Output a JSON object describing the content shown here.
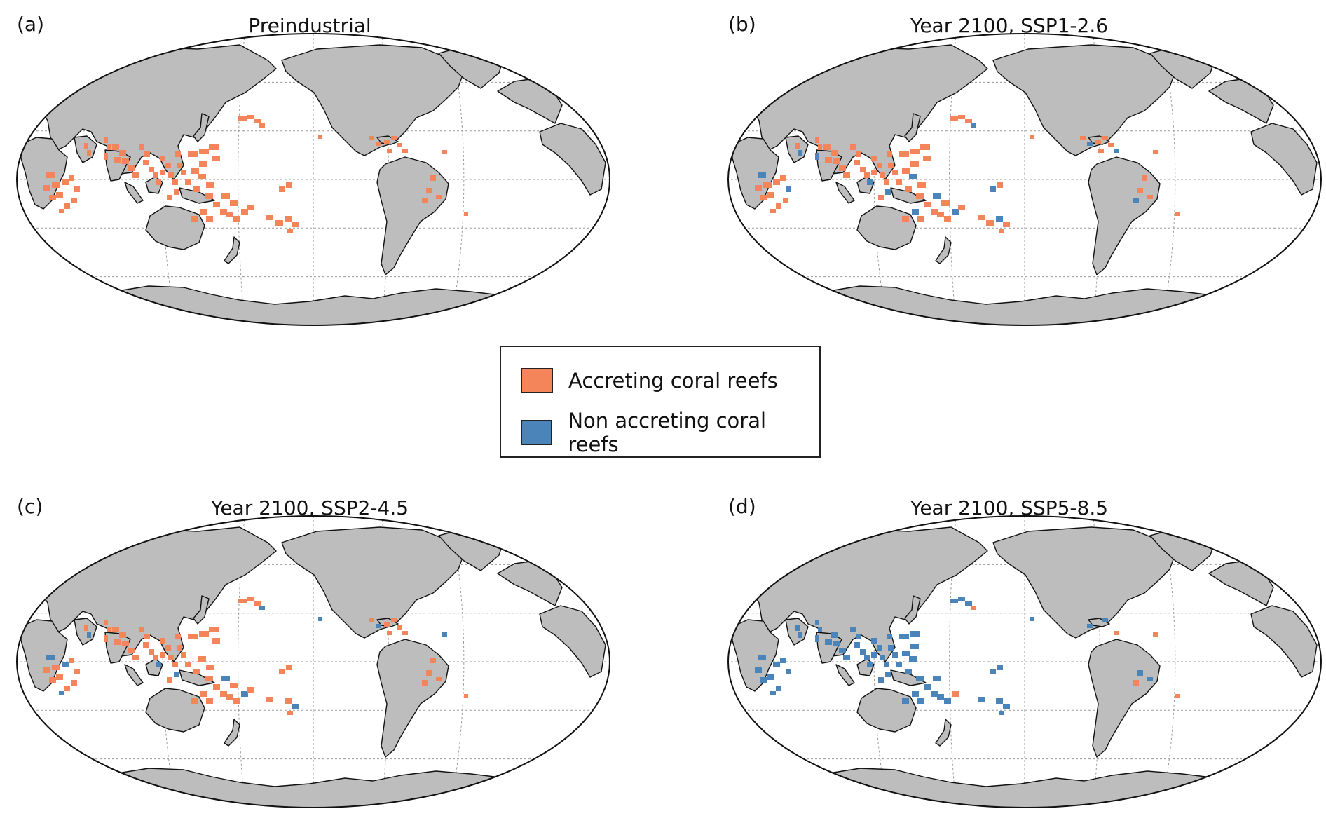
{
  "panels": [
    {
      "letter": "(a)",
      "title": "Preindustrial"
    },
    {
      "letter": "(b)",
      "title": "Year 2100, SSP1-2.6"
    },
    {
      "letter": "(c)",
      "title": "Year 2100, SSP2-4.5"
    },
    {
      "letter": "(d)",
      "title": "Year 2100, SSP5-8.5"
    }
  ],
  "legend": {
    "items": [
      {
        "label": "Accreting coral reefs",
        "color": "#f4845a"
      },
      {
        "label": "Non accreting coral reefs",
        "color": "#4a84b8"
      }
    ]
  },
  "colors": {
    "land": "#bdbdbd",
    "ocean": "#ffffff",
    "coastline": "#111111",
    "grid": "#9a9a9a"
  },
  "map": {
    "projection": "robinson",
    "central_meridian": 160
  }
}
